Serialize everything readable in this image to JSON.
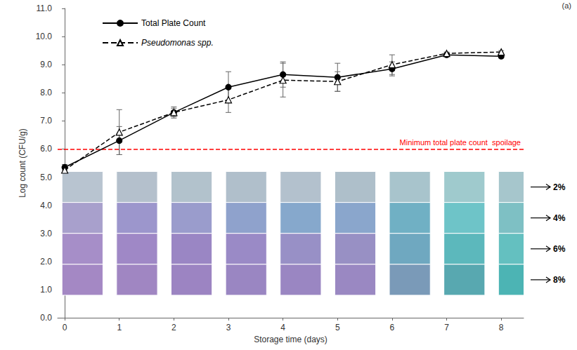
{
  "chart_data": {
    "type": "line",
    "panel_label": "(a)",
    "x_label": "Storage time (days)",
    "y_label": "Log count (CFU/g)",
    "x": [
      0,
      1,
      2,
      3,
      4,
      5,
      6,
      7,
      8
    ],
    "xlim": [
      -0.13,
      8.41
    ],
    "xticks": [
      0,
      1,
      2,
      3,
      4,
      5,
      6,
      7,
      8
    ],
    "ylim": [
      0,
      11
    ],
    "yticks": [
      {
        "value": 0,
        "label": "0.0"
      },
      {
        "value": 1,
        "label": "1.0"
      },
      {
        "value": 2,
        "label": "2.0"
      },
      {
        "value": 3,
        "label": "3.0"
      },
      {
        "value": 4,
        "label": "4.0"
      },
      {
        "value": 5,
        "label": "5.0"
      },
      {
        "value": 6,
        "label": "6.0"
      },
      {
        "value": 7,
        "label": "7.0"
      },
      {
        "value": 8,
        "label": "8.0"
      },
      {
        "value": 9,
        "label": "9.0"
      },
      {
        "value": 10,
        "label": "10.0"
      },
      {
        "value": 11,
        "label": "11.0"
      }
    ],
    "grid": false,
    "legend": "upper left",
    "series": [
      {
        "name": "Total Plate Count",
        "color": "#000000",
        "marker": "circle",
        "line_style": "solid",
        "values": [
          5.35,
          6.3,
          7.3,
          8.2,
          8.65,
          8.55,
          8.85,
          9.35,
          9.3
        ],
        "errors": [
          0.1,
          0.5,
          0.15,
          0.55,
          0.45,
          0.5,
          0.25,
          0.05,
          0.05
        ]
      },
      {
        "name": "Pseudomonas spp.",
        "color": "#000000",
        "marker": "triangle",
        "line_style": "dashed",
        "values": [
          5.25,
          6.6,
          7.3,
          7.75,
          8.45,
          8.4,
          9.0,
          9.4,
          9.45
        ],
        "errors": [
          0.1,
          0.8,
          0.2,
          0.45,
          0.6,
          0.35,
          0.35,
          0.05,
          0.05
        ]
      }
    ],
    "reference_line": {
      "value": 6,
      "label": "Minimum total plate count  spoilage",
      "color": "#ff0000",
      "line_style": "dashed"
    },
    "indicator_strips": [
      {
        "label": "2%",
        "colors": [
          "#b8c4d0",
          "#b4c0cc",
          "#b2c2cc",
          "#b0bfcb",
          "#b3c1cd",
          "#aebfca",
          "#a8c4cc",
          "#9fcacd",
          "#a6c6cc"
        ]
      },
      {
        "label": "4%",
        "colors": [
          "#a8a0cc",
          "#9c96cc",
          "#9a9ccc",
          "#8fa2cc",
          "#86a8cc",
          "#8aa6cc",
          "#70b0c4",
          "#6ec4c8",
          "#7ec0c4"
        ]
      },
      {
        "label": "6%",
        "colors": [
          "#a68ec8",
          "#9f88c6",
          "#9a86c4",
          "#9a8ac6",
          "#9890c6",
          "#9890c4",
          "#6fa8c0",
          "#5cb8bc",
          "#64c0c0"
        ]
      },
      {
        "label": "8%",
        "colors": [
          "#a488c4",
          "#a086c2",
          "#9c84c2",
          "#9a86c2",
          "#9a86c2",
          "#9a88c2",
          "#7a9ab8",
          "#58a8b0",
          "#4cb4b4"
        ]
      }
    ]
  }
}
